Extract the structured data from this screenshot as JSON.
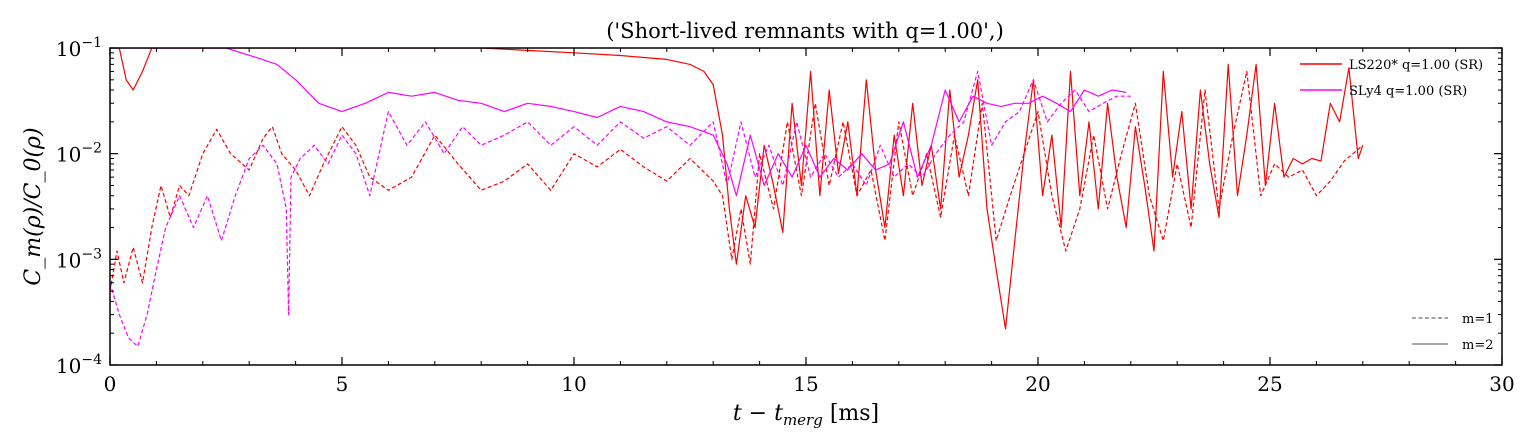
{
  "chart_data": {
    "type": "line",
    "title": "('Short-lived remnants with q=1.00',)",
    "xlabel": "t − t_merg [ms]",
    "xlabel_main": "t − t",
    "xlabel_sub": "merg",
    "xlabel_unit": " [ms]",
    "ylabel": "C_m(ρ)/C_0(ρ)",
    "xlim": [
      0,
      30
    ],
    "ylim": [
      0.0001,
      0.1
    ],
    "yscale": "log",
    "grid": false,
    "legend_position": "top-right",
    "x_ticks": [
      {
        "value": 0,
        "label": "0"
      },
      {
        "value": 5,
        "label": "5"
      },
      {
        "value": 10,
        "label": "10"
      },
      {
        "value": 15,
        "label": "15"
      },
      {
        "value": 20,
        "label": "20"
      },
      {
        "value": 25,
        "label": "25"
      },
      {
        "value": 30,
        "label": "30"
      }
    ],
    "y_ticks": [
      {
        "value": 0.0001,
        "base": "10",
        "exp": "−4"
      },
      {
        "value": 0.001,
        "base": "10",
        "exp": "−3"
      },
      {
        "value": 0.01,
        "base": "10",
        "exp": "−2"
      },
      {
        "value": 0.1,
        "base": "10",
        "exp": "−1"
      }
    ],
    "legend_eos": [
      {
        "name": "LS220* q=1.00 (SR)",
        "color": "#ff0000"
      },
      {
        "name": "SLy4 q=1.00 (SR)",
        "color": "#ff00ff"
      }
    ],
    "legend_modes": [
      {
        "name": "m=1",
        "style": "dashed",
        "color": "#888888"
      },
      {
        "name": "m=2",
        "style": "solid",
        "color": "#888888"
      }
    ],
    "series": [
      {
        "eos": "LS220* q=1.00 (SR)",
        "mode": "m=2",
        "color": "#ff0000",
        "dash": false,
        "x": [
          0.0,
          0.2,
          0.35,
          0.5,
          0.7,
          0.9,
          1.2,
          2.0,
          3.0,
          5.0,
          7.0,
          8.0,
          9.0,
          10.0,
          11.0,
          12.0,
          12.5,
          12.8,
          13.0,
          13.2,
          13.35,
          13.5,
          13.7,
          13.9,
          14.1,
          14.3,
          14.5,
          14.7,
          14.9,
          15.1,
          15.3,
          15.5,
          15.7,
          15.9,
          16.1,
          16.3,
          16.5,
          16.7,
          16.9,
          17.1,
          17.3,
          17.5,
          17.7,
          17.9,
          18.1,
          18.3,
          18.5,
          18.7,
          18.9,
          19.1,
          19.3,
          19.5,
          19.7,
          19.9,
          20.1,
          20.3,
          20.5,
          20.7,
          20.9,
          21.1,
          21.3,
          21.5,
          21.7,
          21.9,
          22.1,
          22.3,
          22.5,
          22.7,
          22.9,
          23.1,
          23.3,
          23.5,
          23.7,
          23.9,
          24.1,
          24.3,
          24.5,
          24.7,
          24.9,
          25.1,
          25.3,
          25.5,
          25.7,
          25.9,
          26.1,
          26.3,
          26.5,
          26.7,
          26.9,
          27.0
        ],
        "y": [
          0.1,
          0.1,
          0.05,
          0.04,
          0.06,
          0.1,
          0.1,
          0.1,
          0.1,
          0.1,
          0.1,
          0.1,
          0.095,
          0.09,
          0.085,
          0.078,
          0.07,
          0.06,
          0.045,
          0.015,
          0.003,
          0.0009,
          0.004,
          0.002,
          0.012,
          0.005,
          0.0018,
          0.03,
          0.005,
          0.06,
          0.004,
          0.04,
          0.0065,
          0.02,
          0.004,
          0.05,
          0.007,
          0.002,
          0.015,
          0.004,
          0.03,
          0.005,
          0.012,
          0.003,
          0.04,
          0.006,
          0.015,
          0.05,
          0.003,
          0.0008,
          0.00022,
          0.0015,
          0.01,
          0.05,
          0.004,
          0.015,
          0.002,
          0.06,
          0.004,
          0.02,
          0.003,
          0.03,
          0.006,
          0.002,
          0.018,
          0.005,
          0.0012,
          0.06,
          0.006,
          0.025,
          0.003,
          0.04,
          0.008,
          0.0025,
          0.07,
          0.004,
          0.015,
          0.07,
          0.005,
          0.03,
          0.006,
          0.009,
          0.008,
          0.009,
          0.0085,
          0.03,
          0.02,
          0.065,
          0.009,
          0.012
        ]
      },
      {
        "eos": "LS220* q=1.00 (SR)",
        "mode": "m=1",
        "color": "#ff0000",
        "dash": true,
        "x": [
          0.0,
          0.15,
          0.3,
          0.5,
          0.7,
          0.9,
          1.1,
          1.3,
          1.5,
          1.7,
          2.0,
          2.3,
          2.6,
          3.0,
          3.3,
          3.5,
          3.7,
          4.0,
          4.3,
          4.6,
          5.0,
          5.3,
          5.6,
          6.0,
          6.5,
          7.0,
          7.5,
          8.0,
          8.5,
          9.0,
          9.5,
          10.0,
          10.5,
          11.0,
          11.5,
          12.0,
          12.5,
          13.0,
          13.2,
          13.4,
          13.6,
          13.8,
          14.0,
          14.3,
          14.6,
          14.9,
          15.2,
          15.5,
          15.8,
          16.1,
          16.4,
          16.7,
          17.0,
          17.3,
          17.6,
          17.9,
          18.2,
          18.5,
          18.8,
          19.1,
          19.4,
          19.7,
          20.0,
          20.3,
          20.6,
          20.9,
          21.2,
          21.5,
          21.8,
          22.1,
          22.4,
          22.7,
          23.0,
          23.3,
          23.6,
          23.9,
          24.2,
          24.5,
          24.8,
          25.1,
          25.4,
          25.7,
          26.0,
          26.3,
          26.6,
          27.0
        ],
        "y": [
          0.0005,
          0.0012,
          0.0006,
          0.0013,
          0.0006,
          0.002,
          0.005,
          0.0025,
          0.005,
          0.004,
          0.01,
          0.017,
          0.01,
          0.007,
          0.014,
          0.018,
          0.01,
          0.007,
          0.004,
          0.008,
          0.018,
          0.012,
          0.006,
          0.0045,
          0.006,
          0.015,
          0.008,
          0.0045,
          0.0055,
          0.008,
          0.0045,
          0.01,
          0.0075,
          0.011,
          0.0075,
          0.0055,
          0.009,
          0.0055,
          0.004,
          0.001,
          0.003,
          0.0009,
          0.01,
          0.003,
          0.02,
          0.004,
          0.03,
          0.005,
          0.02,
          0.004,
          0.007,
          0.0015,
          0.02,
          0.004,
          0.01,
          0.0025,
          0.015,
          0.004,
          0.03,
          0.0015,
          0.004,
          0.01,
          0.025,
          0.004,
          0.0012,
          0.003,
          0.015,
          0.003,
          0.01,
          0.03,
          0.004,
          0.0015,
          0.008,
          0.002,
          0.04,
          0.003,
          0.015,
          0.06,
          0.004,
          0.008,
          0.006,
          0.007,
          0.004,
          0.0055,
          0.0085,
          0.012
        ]
      },
      {
        "eos": "SLy4 q=1.00 (SR)",
        "mode": "m=2",
        "color": "#ff00ff",
        "dash": false,
        "x": [
          0.0,
          0.3,
          0.8,
          1.5,
          2.5,
          3.2,
          3.6,
          4.0,
          4.5,
          5.0,
          5.5,
          6.0,
          6.5,
          7.0,
          7.5,
          8.0,
          8.5,
          9.0,
          9.5,
          10.0,
          10.5,
          11.0,
          11.5,
          12.0,
          12.5,
          13.0,
          13.3,
          13.5,
          13.8,
          14.1,
          14.4,
          14.7,
          15.0,
          15.3,
          15.6,
          15.9,
          16.2,
          16.5,
          16.8,
          17.1,
          17.4,
          17.7,
          18.0,
          18.3,
          18.6,
          18.9,
          19.2,
          19.5,
          19.8,
          20.1,
          20.4,
          20.7,
          21.0,
          21.3,
          21.6,
          21.9
        ],
        "y": [
          0.1,
          0.1,
          0.1,
          0.1,
          0.1,
          0.08,
          0.07,
          0.05,
          0.03,
          0.025,
          0.03,
          0.038,
          0.035,
          0.038,
          0.032,
          0.03,
          0.025,
          0.03,
          0.028,
          0.025,
          0.022,
          0.028,
          0.025,
          0.02,
          0.018,
          0.015,
          0.008,
          0.004,
          0.015,
          0.005,
          0.01,
          0.006,
          0.012,
          0.006,
          0.009,
          0.007,
          0.01,
          0.007,
          0.008,
          0.02,
          0.006,
          0.012,
          0.04,
          0.02,
          0.035,
          0.03,
          0.028,
          0.03,
          0.03,
          0.035,
          0.03,
          0.025,
          0.04,
          0.035,
          0.04,
          0.038
        ]
      },
      {
        "eos": "SLy4 q=1.00 (SR)",
        "mode": "m=1",
        "color": "#ff00ff",
        "dash": true,
        "x": [
          0.0,
          0.2,
          0.4,
          0.6,
          0.8,
          1.0,
          1.2,
          1.5,
          1.8,
          2.1,
          2.4,
          2.7,
          3.0,
          3.3,
          3.6,
          3.8,
          3.85,
          3.9,
          4.1,
          4.4,
          4.7,
          5.0,
          5.3,
          5.6,
          6.0,
          6.4,
          6.8,
          7.2,
          7.6,
          8.0,
          8.5,
          9.0,
          9.5,
          10.0,
          10.5,
          11.0,
          11.5,
          12.0,
          12.5,
          13.0,
          13.3,
          13.6,
          13.9,
          14.2,
          14.5,
          14.8,
          15.1,
          15.4,
          15.7,
          16.0,
          16.3,
          16.6,
          16.9,
          17.2,
          17.5,
          17.8,
          18.1,
          18.4,
          18.7,
          19.0,
          19.3,
          19.6,
          19.9,
          20.2,
          20.5,
          20.8,
          21.1,
          21.4,
          21.7,
          22.0
        ],
        "y": [
          0.0006,
          0.0003,
          0.00018,
          0.00015,
          0.0003,
          0.0008,
          0.002,
          0.004,
          0.002,
          0.004,
          0.0015,
          0.004,
          0.009,
          0.012,
          0.008,
          0.003,
          0.0003,
          0.006,
          0.009,
          0.012,
          0.008,
          0.015,
          0.01,
          0.004,
          0.025,
          0.012,
          0.02,
          0.01,
          0.018,
          0.012,
          0.015,
          0.02,
          0.012,
          0.018,
          0.012,
          0.02,
          0.014,
          0.018,
          0.012,
          0.02,
          0.005,
          0.02,
          0.006,
          0.012,
          0.005,
          0.02,
          0.006,
          0.01,
          0.006,
          0.008,
          0.005,
          0.012,
          0.006,
          0.008,
          0.006,
          0.01,
          0.015,
          0.02,
          0.06,
          0.012,
          0.02,
          0.025,
          0.05,
          0.02,
          0.03,
          0.04,
          0.025,
          0.03,
          0.035,
          0.035
        ]
      }
    ]
  }
}
